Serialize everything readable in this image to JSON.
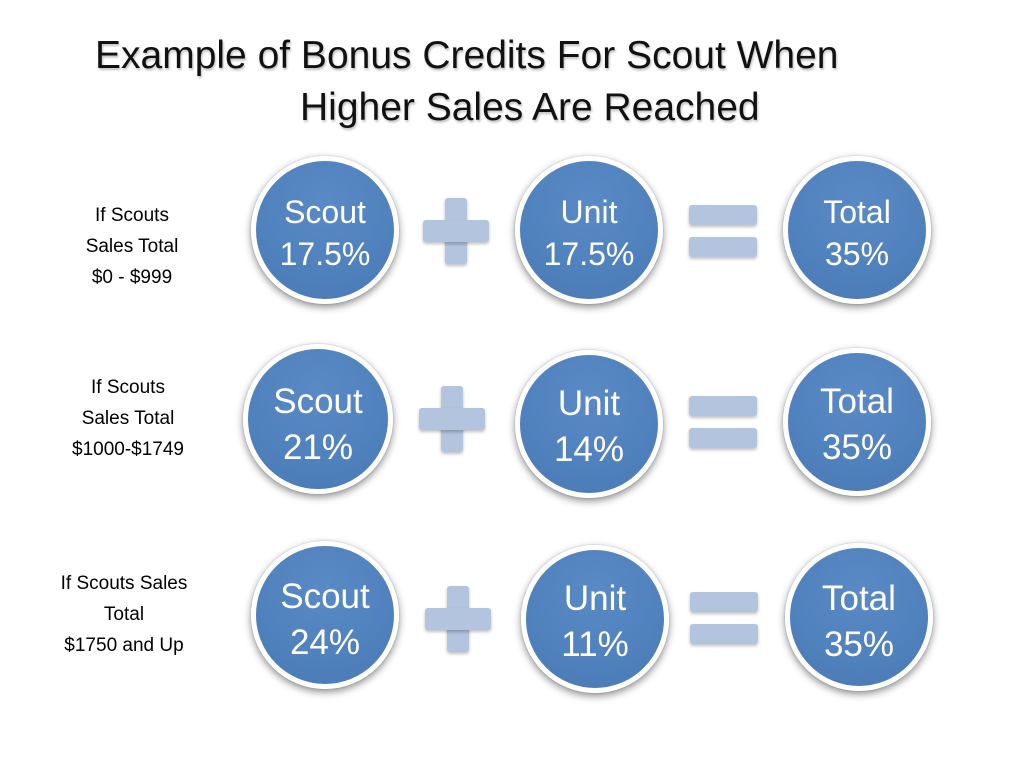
{
  "title": {
    "line1": "Example of Bonus Credits For Scout When",
    "line2": "Higher Sales Are Reached"
  },
  "rows": [
    {
      "label": [
        "If  Scouts",
        "Sales Total",
        "$0 - $999"
      ],
      "scout": {
        "name": "Scout",
        "pct": "17.5%"
      },
      "unit": {
        "name": "Unit",
        "pct": "17.5%"
      },
      "total": {
        "name": "Total",
        "pct": "35%"
      }
    },
    {
      "label": [
        "If  Scouts",
        "Sales Total",
        "$1000-$1749"
      ],
      "scout": {
        "name": "Scout",
        "pct": "21%"
      },
      "unit": {
        "name": "Unit",
        "pct": "14%"
      },
      "total": {
        "name": "Total",
        "pct": "35%"
      }
    },
    {
      "label": [
        "If  Scouts Sales",
        "Total",
        "$1750 and Up"
      ],
      "scout": {
        "name": "Scout",
        "pct": "24%"
      },
      "unit": {
        "name": "Unit",
        "pct": "11%"
      },
      "total": {
        "name": "Total",
        "pct": "35%"
      }
    }
  ],
  "colors": {
    "circle_fill": "#4f81bd",
    "operator_fill": "#b3c4df"
  },
  "icons": {
    "operator_plus": "plus-icon",
    "operator_equals": "equals-icon"
  }
}
